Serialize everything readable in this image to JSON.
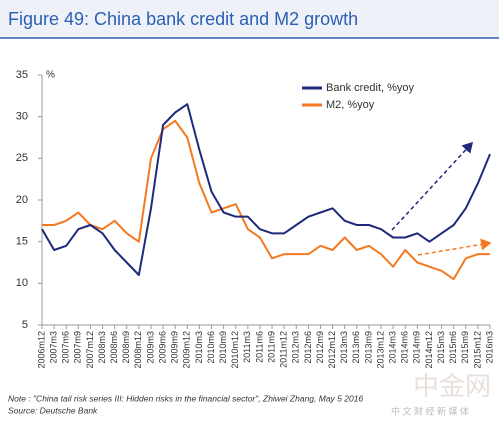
{
  "chart_data": {
    "type": "line",
    "title": "Figure 49: China bank credit and M2 growth",
    "y_unit": "%",
    "categories": [
      "2006m12",
      "2007m3",
      "2007m6",
      "2007m9",
      "2007m12",
      "2008m3",
      "2008m6",
      "2008m9",
      "2008m12",
      "2009m3",
      "2009m6",
      "2009m9",
      "2009m12",
      "2010m3",
      "2010m6",
      "2010m9",
      "2010m12",
      "2011m3",
      "2011m6",
      "2011m9",
      "2011m12",
      "2012m3",
      "2012m6",
      "2012m9",
      "2012m12",
      "2013m3",
      "2013m6",
      "2013m9",
      "2013m12",
      "2014m3",
      "2014m6",
      "2014m9",
      "2014m12",
      "2015m3",
      "2015m6",
      "2015m9",
      "2015m12",
      "2016m3"
    ],
    "series": [
      {
        "name": "Bank credit, %yoy",
        "color": "#1f2a7a",
        "values": [
          16.5,
          14,
          14.5,
          16.5,
          17,
          16,
          14,
          12.5,
          11,
          19,
          29,
          30.5,
          31.5,
          26,
          21,
          18.5,
          18,
          18,
          16.5,
          16,
          16,
          17,
          18,
          18.5,
          19,
          17.5,
          17,
          17,
          16.5,
          15.5,
          15.5,
          16,
          15,
          16,
          17,
          19,
          22,
          25.5
        ]
      },
      {
        "name": "M2, %yoy",
        "color": "#f47920",
        "values": [
          17,
          17,
          17.5,
          18.5,
          17,
          16.5,
          17.5,
          16,
          15,
          25,
          28.5,
          29.5,
          27.5,
          22,
          18.5,
          19,
          19.5,
          16.5,
          15.5,
          13,
          13.5,
          13.5,
          13.5,
          14.5,
          14,
          15.5,
          14,
          14.5,
          13.5,
          12,
          14,
          12.5,
          12,
          11.5,
          10.5,
          13,
          13.5,
          13.5
        ]
      }
    ],
    "ylim": [
      5,
      35
    ],
    "yticks": [
      5,
      10,
      15,
      20,
      25,
      30,
      35
    ],
    "note": "Note : \"China tail risk series III: Hidden risks in the financial sector\", Zhiwei Zhang, May 5 2016",
    "source": "Source: Deutsche Bank",
    "watermark": "中金网",
    "watermark_sub": "中 文 财 经 新 媒 体"
  }
}
